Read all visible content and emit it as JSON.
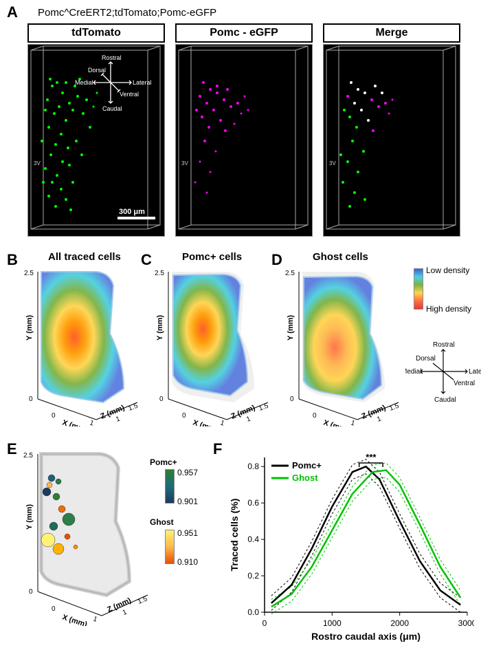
{
  "figure": {
    "panelA": {
      "label": "A",
      "subtitle": "Pomc^CreERT2;tdTomato;Pomc-eGFP",
      "headers": [
        "tdTomato",
        "Pomc - eGFP",
        "Merge"
      ],
      "scalebar": "300 μm",
      "compass": {
        "labels": [
          "Rostral",
          "Dorsal",
          "Medial",
          "Lateral",
          "Ventral",
          "Caudal"
        ]
      },
      "thirdV": "3V",
      "dot_colors": {
        "green": "#00ff00",
        "magenta": "#ff00ff",
        "white": "#ffffff"
      }
    },
    "panelB": {
      "label": "B",
      "title": "All traced cells"
    },
    "panelC": {
      "label": "C",
      "title": "Pomc+ cells"
    },
    "panelD": {
      "label": "D",
      "title": "Ghost cells"
    },
    "density_legend": {
      "top": "Low density",
      "bottom": "High density"
    },
    "axes3d": {
      "x_label": "X (mm)",
      "y_label": "Y (mm)",
      "z_label": "Z (mm)",
      "x_ticks": [
        "0",
        "1",
        "1.5"
      ],
      "y_ticks": [
        "0",
        "2.5"
      ],
      "z_ticks": [
        "1"
      ]
    },
    "compass2": {
      "labels": [
        "Rostral",
        "Dorsal",
        "Medial",
        "Lateral",
        "Ventral",
        "Caudal"
      ]
    },
    "panelE": {
      "label": "E",
      "pomc_label": "Pomc+",
      "pomc_vals": [
        "0.957",
        "0.901"
      ],
      "ghost_label": "Ghost",
      "ghost_vals": [
        "0.951",
        "0.910"
      ],
      "points_pomc": [
        {
          "x": 45,
          "y": 45,
          "r": 5,
          "c": "#1e5f7a"
        },
        {
          "x": 55,
          "y": 50,
          "r": 4,
          "c": "#2c7a4a"
        },
        {
          "x": 38,
          "y": 65,
          "r": 6,
          "c": "#1e3a5f"
        },
        {
          "x": 52,
          "y": 72,
          "r": 5,
          "c": "#2e7d32"
        },
        {
          "x": 70,
          "y": 105,
          "r": 9,
          "c": "#2e7d4a"
        },
        {
          "x": 48,
          "y": 115,
          "r": 6,
          "c": "#1e6b5a"
        }
      ],
      "points_ghost": [
        {
          "x": 42,
          "y": 55,
          "r": 4,
          "c": "#ffb74d"
        },
        {
          "x": 60,
          "y": 90,
          "r": 5,
          "c": "#ef6c00"
        },
        {
          "x": 40,
          "y": 135,
          "r": 10,
          "c": "#fff176"
        },
        {
          "x": 68,
          "y": 130,
          "r": 4,
          "c": "#e65100"
        },
        {
          "x": 55,
          "y": 148,
          "r": 8,
          "c": "#ffb300"
        },
        {
          "x": 80,
          "y": 145,
          "r": 3,
          "c": "#ff8f00"
        }
      ]
    },
    "panelF": {
      "label": "F",
      "x_label": "Rostro caudal axis (μm)",
      "y_label": "Traced cells (%)",
      "x_ticks": [
        "0",
        "1000",
        "2000",
        "3000"
      ],
      "y_ticks": [
        "0.0",
        "0.2",
        "0.4",
        "0.6",
        "0.8"
      ],
      "legend": {
        "pomc": "Pomc+",
        "ghost": "Ghost"
      },
      "sig": "***",
      "colors": {
        "pomc": "#000000",
        "ghost": "#00c000"
      },
      "curves": {
        "pomc_mean": [
          [
            100,
            0.05
          ],
          [
            400,
            0.15
          ],
          [
            700,
            0.35
          ],
          [
            1000,
            0.58
          ],
          [
            1300,
            0.77
          ],
          [
            1500,
            0.8
          ],
          [
            1700,
            0.73
          ],
          [
            2000,
            0.5
          ],
          [
            2300,
            0.28
          ],
          [
            2600,
            0.12
          ],
          [
            2900,
            0.04
          ]
        ],
        "ghost_mean": [
          [
            100,
            0.03
          ],
          [
            400,
            0.1
          ],
          [
            700,
            0.25
          ],
          [
            1000,
            0.45
          ],
          [
            1300,
            0.65
          ],
          [
            1600,
            0.77
          ],
          [
            1800,
            0.78
          ],
          [
            2000,
            0.7
          ],
          [
            2300,
            0.48
          ],
          [
            2600,
            0.25
          ],
          [
            2900,
            0.08
          ]
        ]
      },
      "xlim": [
        0,
        3000
      ],
      "ylim": [
        0,
        0.85
      ]
    }
  }
}
